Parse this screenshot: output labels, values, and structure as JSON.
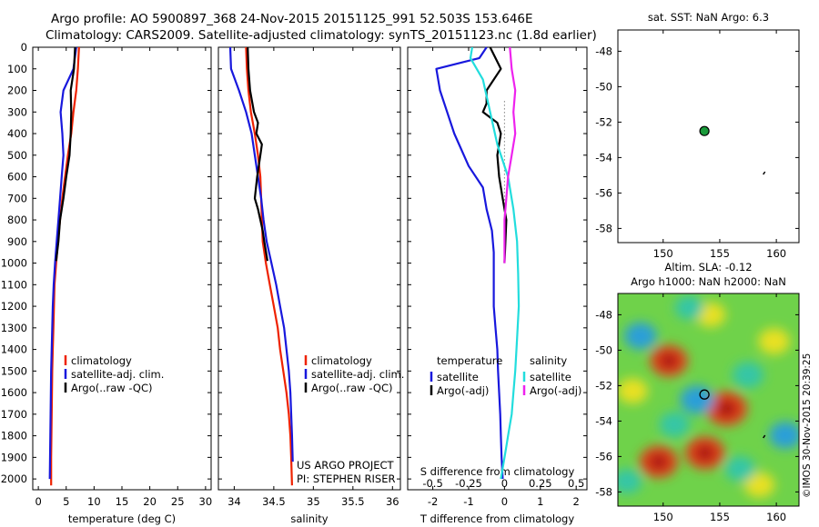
{
  "header": {
    "line1": "Argo profile: AO 5900897_368 24-Nov-2015 20151125_991 52.503S 153.646E",
    "line2": "Climatology: CARS2009. Satellite-adjusted climatology: synTS_20151123.nc (1.8d earlier)"
  },
  "colors": {
    "climatology": "#ee2200",
    "satellite": "#1818dd",
    "argo": "#000000",
    "argo_salinity": "#ee22ee",
    "satellite_salinity": "#22dddd"
  },
  "chart_data": [
    {
      "type": "line",
      "id": "temperature",
      "xlabel": "temperature (deg C)",
      "ylabel": "",
      "xlim": [
        -1,
        31
      ],
      "ylim": [
        2050,
        0
      ],
      "xticks": [
        0,
        5,
        10,
        15,
        20,
        25,
        30
      ],
      "yticks": [
        0,
        100,
        200,
        300,
        400,
        500,
        600,
        700,
        800,
        900,
        1000,
        1100,
        1200,
        1300,
        1400,
        1500,
        1600,
        1700,
        1800,
        1900,
        2000
      ],
      "legend": [
        "climatology",
        "satellite-adj. clim.",
        "Argo(..raw -QC)"
      ],
      "series": [
        {
          "name": "climatology",
          "color": "#ee2200",
          "x": [
            7.3,
            7.1,
            6.8,
            6.3,
            5.9,
            5.3,
            4.8,
            4.3,
            3.9,
            3.5,
            3.2,
            2.9,
            2.8,
            2.7,
            2.6,
            2.5,
            2.45,
            2.4,
            2.35,
            2.3,
            2.3
          ],
          "y": [
            0,
            100,
            200,
            300,
            400,
            500,
            600,
            700,
            800,
            900,
            1000,
            1100,
            1200,
            1300,
            1400,
            1500,
            1600,
            1700,
            1800,
            1900,
            2030
          ]
        },
        {
          "name": "satellite-adj. clim.",
          "color": "#1818dd",
          "x": [
            6.8,
            6.3,
            4.5,
            4.0,
            4.3,
            4.5,
            4.2,
            3.9,
            3.6,
            3.3,
            3.0,
            2.75,
            2.6,
            2.5,
            2.4,
            2.3,
            2.25,
            2.2,
            2.15,
            2.1,
            2.05
          ],
          "y": [
            0,
            100,
            200,
            300,
            400,
            500,
            600,
            700,
            800,
            900,
            1000,
            1100,
            1200,
            1300,
            1400,
            1500,
            1600,
            1700,
            1800,
            1900,
            2000
          ]
        },
        {
          "name": "Argo(..raw -QC)",
          "color": "#000000",
          "x": [
            6.6,
            6.4,
            5.8,
            5.9,
            5.8,
            5.6,
            5.0,
            4.5,
            3.9,
            3.6,
            3.2
          ],
          "y": [
            0,
            100,
            200,
            300,
            400,
            500,
            600,
            700,
            800,
            900,
            990
          ]
        }
      ]
    },
    {
      "type": "line",
      "id": "salinity",
      "xlabel": "salinity",
      "ylabel": "",
      "xlim": [
        33.8,
        36.1
      ],
      "ylim": [
        2050,
        0
      ],
      "xticks": [
        34,
        34.5,
        35,
        35.5,
        36
      ],
      "legend": [
        "climatology",
        "satellite-adj. clim.",
        "Argo(..raw -QC)"
      ],
      "credit": [
        "US ARGO PROJECT",
        "PI: STEPHEN RISER"
      ],
      "series": [
        {
          "name": "climatology",
          "color": "#ee2200",
          "x": [
            34.15,
            34.16,
            34.18,
            34.21,
            34.26,
            34.3,
            34.33,
            34.34,
            34.35,
            34.36,
            34.4,
            34.45,
            34.5,
            34.55,
            34.58,
            34.62,
            34.66,
            34.69,
            34.71,
            34.72,
            34.73
          ],
          "y": [
            0,
            100,
            200,
            300,
            400,
            500,
            600,
            700,
            800,
            900,
            1000,
            1100,
            1200,
            1300,
            1400,
            1500,
            1600,
            1700,
            1800,
            1900,
            2030
          ]
        },
        {
          "name": "satellite-adj. clim.",
          "color": "#1818dd",
          "x": [
            33.95,
            33.96,
            34.06,
            34.15,
            34.22,
            34.26,
            34.3,
            34.34,
            34.37,
            34.41,
            34.47,
            34.53,
            34.58,
            34.63,
            34.66,
            34.69,
            34.71,
            34.72,
            34.73,
            34.74
          ],
          "y": [
            0,
            100,
            200,
            300,
            400,
            500,
            600,
            700,
            800,
            900,
            1000,
            1100,
            1200,
            1300,
            1400,
            1500,
            1600,
            1700,
            1800,
            1920
          ]
        },
        {
          "name": "Argo(..raw -QC)",
          "color": "#000000",
          "x": [
            34.17,
            34.18,
            34.2,
            34.25,
            34.3,
            34.28,
            34.35,
            34.33,
            34.29,
            34.26,
            34.3,
            34.33,
            34.36,
            34.38,
            34.42
          ],
          "y": [
            0,
            100,
            200,
            300,
            350,
            400,
            450,
            500,
            600,
            700,
            750,
            800,
            850,
            900,
            990
          ]
        }
      ]
    },
    {
      "type": "line",
      "id": "difference",
      "xlabel": "T difference from climatology",
      "xlabel_top": "S difference from climatology",
      "xlim": [
        -2.7,
        2.3
      ],
      "ylim": [
        2050,
        0
      ],
      "xticks": [
        -2,
        -1,
        0,
        1,
        2
      ],
      "xticks_s": [
        "-0.5",
        "-0.25",
        "0",
        "0.25",
        "0.5"
      ],
      "legend_titles": [
        "temperature",
        "salinity"
      ],
      "legend": [
        "satellite",
        "Argo(-adj)",
        "satellite",
        "Argo(-adj)"
      ],
      "series": [
        {
          "name": "satellite",
          "color": "#1818dd",
          "x": [
            -0.5,
            -0.7,
            -1.9,
            -1.8,
            -1.4,
            -1.0,
            -0.6,
            -0.5,
            -0.35,
            -0.3,
            -0.3,
            -0.3,
            -0.25,
            -0.2,
            -0.18,
            -0.15,
            -0.12,
            -0.1,
            -0.08,
            -0.05
          ],
          "y": [
            0,
            50,
            100,
            200,
            400,
            550,
            650,
            750,
            850,
            950,
            1050,
            1200,
            1300,
            1400,
            1500,
            1600,
            1700,
            1800,
            1900,
            2000
          ]
        },
        {
          "name": "Argo(-adj)",
          "color": "#000000",
          "x": [
            -0.4,
            -0.1,
            -0.5,
            -0.5,
            -0.6,
            -0.2,
            -0.1,
            -0.2,
            -0.15,
            -0.05,
            0.05,
            0.0
          ],
          "y": [
            0,
            100,
            200,
            260,
            300,
            350,
            400,
            500,
            600,
            700,
            800,
            1000
          ]
        },
        {
          "name": "satellite",
          "color": "#22dddd",
          "x": [
            -0.9,
            -0.95,
            -0.6,
            -0.4,
            -0.2,
            0.1,
            0.25,
            0.35,
            0.38,
            0.4,
            0.35,
            0.3,
            0.25,
            0.2,
            0.15,
            0.1,
            0.05,
            0.0,
            -0.05,
            -0.1
          ],
          "y": [
            0,
            50,
            150,
            300,
            450,
            600,
            750,
            900,
            1050,
            1200,
            1350,
            1500,
            1600,
            1700,
            1750,
            1800,
            1850,
            1900,
            1950,
            2000
          ]
        },
        {
          "name": "Argo(-adj)",
          "color": "#ee22ee",
          "x": [
            0.15,
            0.2,
            0.3,
            0.25,
            0.3,
            0.2,
            0.1,
            0.05,
            0.0,
            0.0
          ],
          "y": [
            0,
            100,
            200,
            300,
            400,
            500,
            600,
            700,
            800,
            1000
          ]
        }
      ]
    },
    {
      "type": "scatter",
      "id": "sst-map",
      "title": "sat. SST: NaN Argo: 6.3",
      "xticks": [
        150,
        155,
        160
      ],
      "yticks": [
        -48,
        -50,
        -52,
        -54,
        -56,
        -58
      ],
      "xlim": [
        146,
        162
      ],
      "ylim": [
        -58.8,
        -46.8
      ],
      "points": [
        {
          "lon": 153.646,
          "lat": -52.503
        }
      ]
    },
    {
      "type": "heatmap",
      "id": "sla-map",
      "title": "Altim. SLA: -0.12",
      "subtitle": "Argo h1000: NaN h2000: NaN",
      "xticks": [
        150,
        155,
        160
      ],
      "yticks": [
        -48,
        -50,
        -52,
        -54,
        -56,
        -58
      ],
      "xlim": [
        146,
        162
      ],
      "ylim": [
        -58.8,
        -46.8
      ],
      "points": [
        {
          "lon": 153.646,
          "lat": -52.503
        }
      ],
      "blobs": [
        {
          "lon": 153.7,
          "lat": -55.8,
          "v": 1.0
        },
        {
          "lon": 149.6,
          "lat": -56.3,
          "v": 0.95
        },
        {
          "lon": 150.5,
          "lat": -50.6,
          "v": 0.9
        },
        {
          "lon": 155.6,
          "lat": -53.3,
          "v": 1.1
        },
        {
          "lon": 147.3,
          "lat": -52.3,
          "v": 0.5
        },
        {
          "lon": 159.8,
          "lat": -49.5,
          "v": 0.55
        },
        {
          "lon": 158.5,
          "lat": -57.6,
          "v": 0.5
        },
        {
          "lon": 154.2,
          "lat": -48.0,
          "v": 0.45
        },
        {
          "lon": 148.0,
          "lat": -49.2,
          "v": -0.6
        },
        {
          "lon": 153.0,
          "lat": -52.8,
          "v": -0.7
        },
        {
          "lon": 151.0,
          "lat": -54.2,
          "v": -0.5
        },
        {
          "lon": 157.5,
          "lat": -51.4,
          "v": -0.55
        },
        {
          "lon": 156.8,
          "lat": -56.7,
          "v": -0.5
        },
        {
          "lon": 160.8,
          "lat": -54.8,
          "v": -0.6
        },
        {
          "lon": 146.8,
          "lat": -57.4,
          "v": -0.45
        },
        {
          "lon": 152.3,
          "lat": -47.6,
          "v": -0.4
        }
      ]
    }
  ],
  "stamp": "©IMOS 30-Nov-2015 20:39:25"
}
